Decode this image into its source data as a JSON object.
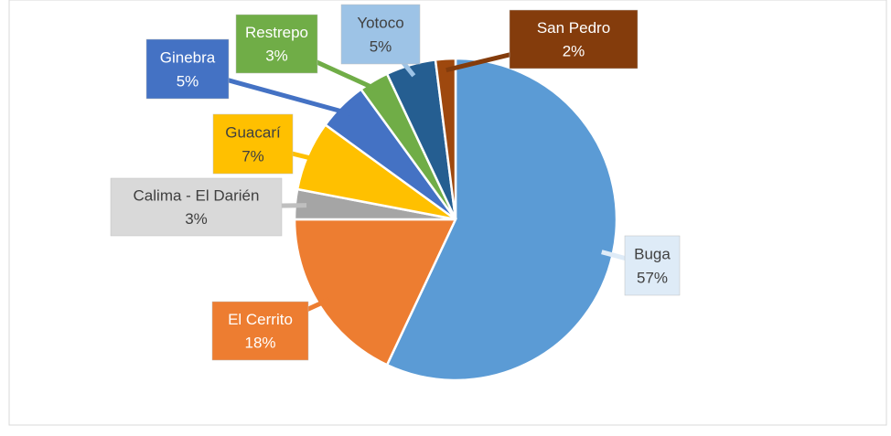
{
  "chart_data": {
    "type": "pie",
    "categories": [
      "Buga",
      "El Cerrito",
      "Calima - El Darién",
      "Guacarí",
      "Ginebra",
      "Restrepo",
      "Yotoco",
      "San Pedro"
    ],
    "values": [
      57,
      18,
      3,
      7,
      5,
      3,
      5,
      2
    ],
    "value_labels": [
      "57%",
      "18%",
      "3%",
      "7%",
      "5%",
      "3%",
      "5%",
      "2%"
    ],
    "colors": [
      "#5b9bd5",
      "#ed7d31",
      "#a5a5a5",
      "#ffc000",
      "#4472c4",
      "#70ad47",
      "#255e91",
      "#9e480e"
    ],
    "label_colors": [
      "#deebf7",
      "#ed7d31",
      "#d9d9d9",
      "#ffc000",
      "#4472c4",
      "#70ad47",
      "#9dc3e6",
      "#843c0c"
    ]
  }
}
